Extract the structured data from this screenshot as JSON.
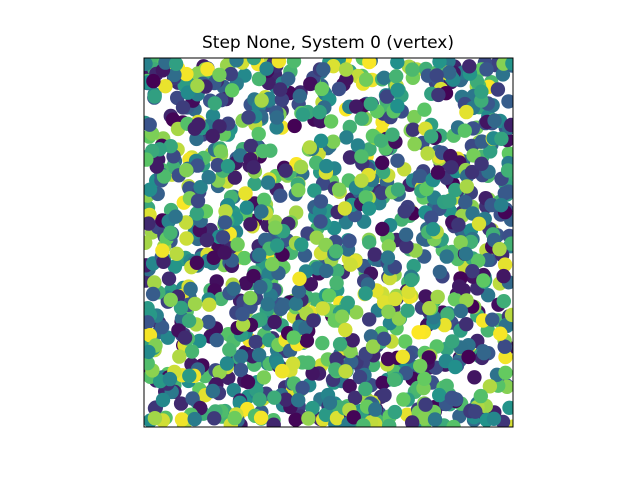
{
  "chart_data": {
    "type": "scatter",
    "title": "Step None, System 0 (vertex)",
    "xlabel": "",
    "ylabel": "",
    "xlim": [
      0,
      1
    ],
    "ylim": [
      0,
      1
    ],
    "axis_ticks": "none",
    "grid": false,
    "legend": "none",
    "colormap": "viridis",
    "colormap_stops": [
      "#440154",
      "#3b528b",
      "#21918c",
      "#5ec962",
      "#fde725"
    ],
    "point_count_estimate": 1400,
    "fill_fraction": 0.88,
    "color_value_range": [
      0,
      1
    ],
    "random_seed_note": "positions and colors are an approximate random-uniform field as depicted"
  }
}
